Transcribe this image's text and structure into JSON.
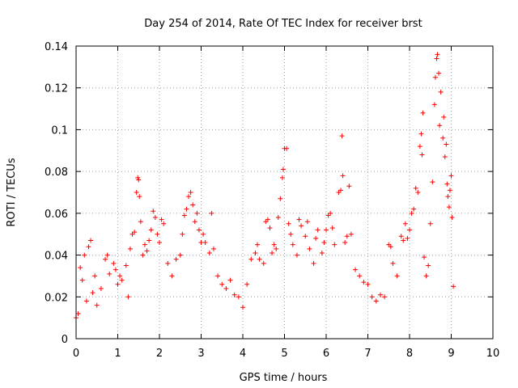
{
  "chart_data": {
    "type": "scatter",
    "title": "Day 254 of 2014, Rate Of TEC Index for receiver brst",
    "xlabel": "GPS time / hours",
    "ylabel": "ROTI / TECUs",
    "xlim": [
      0,
      10
    ],
    "ylim": [
      0,
      0.14
    ],
    "xticks": [
      "0",
      "1",
      "2",
      "3",
      "4",
      "5",
      "6",
      "7",
      "8",
      "9",
      "10"
    ],
    "yticks": [
      "0",
      "0.02",
      "0.04",
      "0.06",
      "0.08",
      "0.1",
      "0.12",
      "0.14"
    ],
    "grid": true,
    "marker": "+",
    "color": "#ff0000",
    "series": [
      {
        "name": "ROTI",
        "points": [
          [
            0.0,
            0.01
          ],
          [
            0.05,
            0.012
          ],
          [
            0.1,
            0.034
          ],
          [
            0.15,
            0.028
          ],
          [
            0.2,
            0.04
          ],
          [
            0.25,
            0.018
          ],
          [
            0.3,
            0.044
          ],
          [
            0.35,
            0.047
          ],
          [
            0.4,
            0.022
          ],
          [
            0.45,
            0.03
          ],
          [
            0.5,
            0.016
          ],
          [
            0.6,
            0.024
          ],
          [
            0.7,
            0.038
          ],
          [
            0.75,
            0.04
          ],
          [
            0.8,
            0.031
          ],
          [
            0.9,
            0.036
          ],
          [
            0.95,
            0.033
          ],
          [
            1.0,
            0.026
          ],
          [
            1.05,
            0.03
          ],
          [
            1.1,
            0.028
          ],
          [
            1.2,
            0.035
          ],
          [
            1.25,
            0.02
          ],
          [
            1.3,
            0.043
          ],
          [
            1.35,
            0.05
          ],
          [
            1.4,
            0.051
          ],
          [
            1.45,
            0.07
          ],
          [
            1.48,
            0.077
          ],
          [
            1.5,
            0.076
          ],
          [
            1.52,
            0.068
          ],
          [
            1.55,
            0.056
          ],
          [
            1.6,
            0.04
          ],
          [
            1.65,
            0.045
          ],
          [
            1.7,
            0.042
          ],
          [
            1.75,
            0.047
          ],
          [
            1.8,
            0.052
          ],
          [
            1.85,
            0.061
          ],
          [
            1.9,
            0.058
          ],
          [
            1.95,
            0.05
          ],
          [
            2.0,
            0.046
          ],
          [
            2.05,
            0.057
          ],
          [
            2.1,
            0.055
          ],
          [
            2.2,
            0.036
          ],
          [
            2.3,
            0.03
          ],
          [
            2.4,
            0.038
          ],
          [
            2.5,
            0.04
          ],
          [
            2.55,
            0.05
          ],
          [
            2.6,
            0.059
          ],
          [
            2.65,
            0.062
          ],
          [
            2.7,
            0.068
          ],
          [
            2.75,
            0.07
          ],
          [
            2.8,
            0.064
          ],
          [
            2.85,
            0.056
          ],
          [
            2.9,
            0.06
          ],
          [
            2.95,
            0.052
          ],
          [
            3.0,
            0.046
          ],
          [
            3.05,
            0.05
          ],
          [
            3.1,
            0.046
          ],
          [
            3.2,
            0.041
          ],
          [
            3.25,
            0.06
          ],
          [
            3.3,
            0.043
          ],
          [
            3.4,
            0.03
          ],
          [
            3.5,
            0.026
          ],
          [
            3.6,
            0.024
          ],
          [
            3.7,
            0.028
          ],
          [
            3.8,
            0.021
          ],
          [
            3.9,
            0.02
          ],
          [
            4.0,
            0.015
          ],
          [
            4.1,
            0.026
          ],
          [
            4.2,
            0.038
          ],
          [
            4.3,
            0.041
          ],
          [
            4.35,
            0.045
          ],
          [
            4.4,
            0.038
          ],
          [
            4.5,
            0.036
          ],
          [
            4.55,
            0.056
          ],
          [
            4.6,
            0.057
          ],
          [
            4.65,
            0.053
          ],
          [
            4.7,
            0.041
          ],
          [
            4.75,
            0.045
          ],
          [
            4.8,
            0.043
          ],
          [
            4.85,
            0.058
          ],
          [
            4.9,
            0.067
          ],
          [
            4.95,
            0.077
          ],
          [
            4.97,
            0.081
          ],
          [
            5.0,
            0.091
          ],
          [
            5.05,
            0.091
          ],
          [
            5.1,
            0.055
          ],
          [
            5.15,
            0.05
          ],
          [
            5.2,
            0.045
          ],
          [
            5.3,
            0.04
          ],
          [
            5.35,
            0.057
          ],
          [
            5.4,
            0.054
          ],
          [
            5.5,
            0.049
          ],
          [
            5.55,
            0.056
          ],
          [
            5.6,
            0.043
          ],
          [
            5.7,
            0.036
          ],
          [
            5.75,
            0.048
          ],
          [
            5.8,
            0.052
          ],
          [
            5.9,
            0.041
          ],
          [
            5.95,
            0.046
          ],
          [
            6.0,
            0.052
          ],
          [
            6.05,
            0.059
          ],
          [
            6.1,
            0.06
          ],
          [
            6.15,
            0.053
          ],
          [
            6.2,
            0.045
          ],
          [
            6.3,
            0.07
          ],
          [
            6.35,
            0.071
          ],
          [
            6.38,
            0.097
          ],
          [
            6.4,
            0.078
          ],
          [
            6.45,
            0.046
          ],
          [
            6.5,
            0.049
          ],
          [
            6.55,
            0.073
          ],
          [
            6.6,
            0.05
          ],
          [
            6.7,
            0.033
          ],
          [
            6.8,
            0.03
          ],
          [
            6.9,
            0.027
          ],
          [
            7.0,
            0.026
          ],
          [
            7.1,
            0.02
          ],
          [
            7.2,
            0.018
          ],
          [
            7.3,
            0.021
          ],
          [
            7.4,
            0.02
          ],
          [
            7.5,
            0.045
          ],
          [
            7.55,
            0.044
          ],
          [
            7.6,
            0.036
          ],
          [
            7.7,
            0.03
          ],
          [
            7.8,
            0.049
          ],
          [
            7.85,
            0.047
          ],
          [
            7.9,
            0.055
          ],
          [
            7.95,
            0.048
          ],
          [
            8.0,
            0.052
          ],
          [
            8.05,
            0.06
          ],
          [
            8.1,
            0.062
          ],
          [
            8.15,
            0.072
          ],
          [
            8.2,
            0.07
          ],
          [
            8.25,
            0.092
          ],
          [
            8.28,
            0.098
          ],
          [
            8.3,
            0.088
          ],
          [
            8.32,
            0.108
          ],
          [
            8.35,
            0.039
          ],
          [
            8.4,
            0.03
          ],
          [
            8.45,
            0.035
          ],
          [
            8.5,
            0.055
          ],
          [
            8.55,
            0.075
          ],
          [
            8.6,
            0.112
          ],
          [
            8.62,
            0.125
          ],
          [
            8.65,
            0.134
          ],
          [
            8.67,
            0.136
          ],
          [
            8.7,
            0.127
          ],
          [
            8.72,
            0.102
          ],
          [
            8.75,
            0.118
          ],
          [
            8.8,
            0.096
          ],
          [
            8.82,
            0.106
          ],
          [
            8.85,
            0.087
          ],
          [
            8.88,
            0.093
          ],
          [
            8.9,
            0.074
          ],
          [
            8.92,
            0.068
          ],
          [
            8.95,
            0.063
          ],
          [
            8.97,
            0.071
          ],
          [
            9.0,
            0.078
          ],
          [
            9.02,
            0.058
          ],
          [
            9.05,
            0.025
          ]
        ]
      }
    ]
  }
}
